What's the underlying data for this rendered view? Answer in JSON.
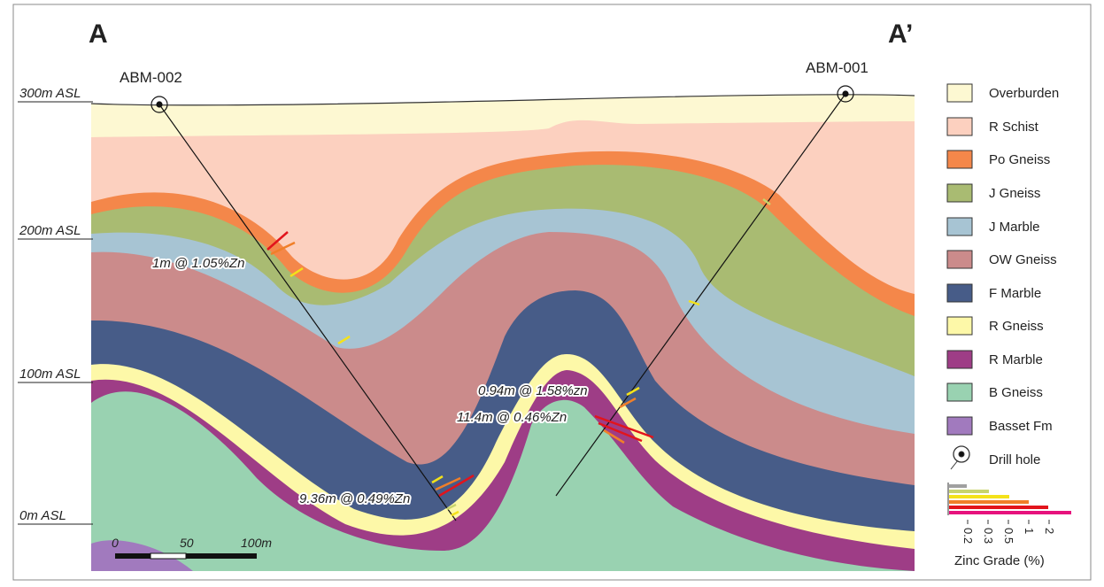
{
  "header": {
    "section_start": "A",
    "section_end": "A’"
  },
  "drill_holes": [
    {
      "label": "ABM-002"
    },
    {
      "label": "ABM-001"
    }
  ],
  "elevation_labels": [
    "300m ASL",
    "200m ASL",
    "100m ASL",
    "0m ASL"
  ],
  "intercepts": [
    "1m @ 1.05%Zn",
    "0.94m @ 1.58%zn",
    "11.4m @ 0.46%Zn",
    "9.36m @ 0.49%Zn"
  ],
  "scale_bar": {
    "labels": [
      "0",
      "50",
      "100m"
    ]
  },
  "legend": {
    "items": [
      "Overburden",
      "R Schist",
      "Po Gneiss",
      "J Gneiss",
      "J Marble",
      "OW Gneiss",
      "F Marble",
      "R Gneiss",
      "R Marble",
      "B Gneiss",
      "Basset Fm"
    ],
    "drill_hole": "Drill hole"
  },
  "grade_legend": {
    "title": "Zinc Grade (%)",
    "labels": [
      "0.2",
      "0.3",
      "0.5",
      "1",
      "2"
    ]
  }
}
